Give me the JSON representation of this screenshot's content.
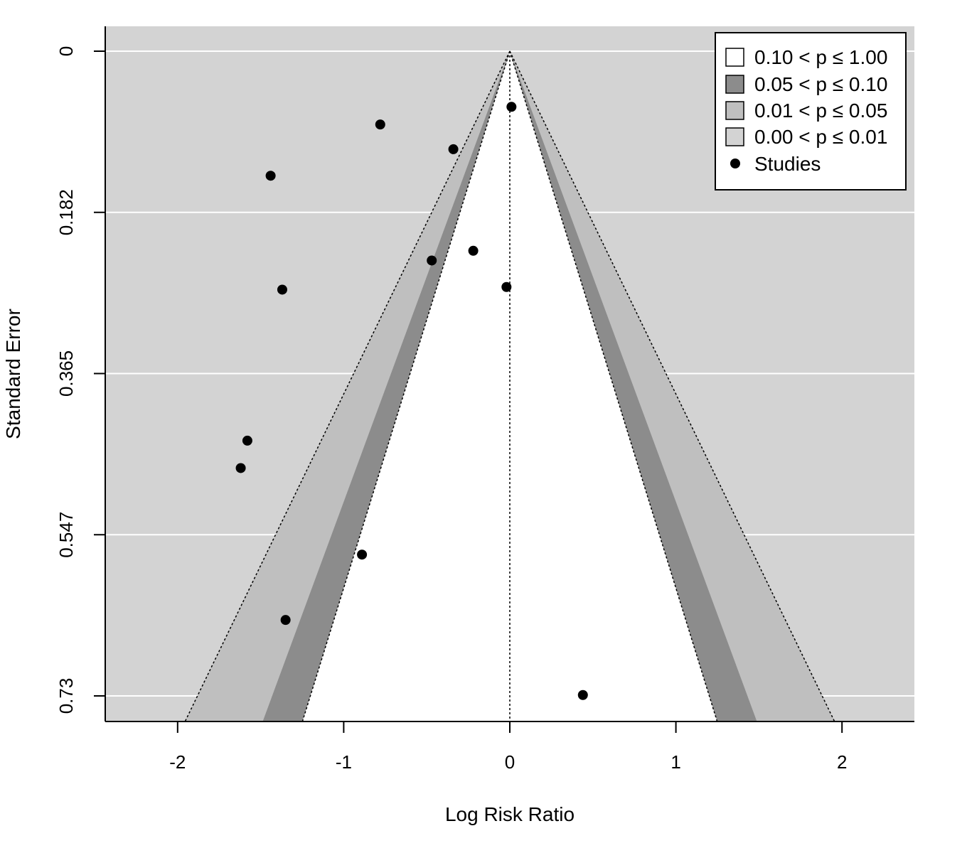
{
  "chart_data": {
    "type": "scatter",
    "subtype": "contour-enhanced funnel plot",
    "xlabel": "Log Risk Ratio",
    "ylabel": "Standard Error",
    "xlim": [
      -2.43,
      2.43
    ],
    "ylim": [
      0.73,
      0
    ],
    "x_ticks": [
      {
        "value": -2,
        "label": "-2"
      },
      {
        "value": -1,
        "label": "-1"
      },
      {
        "value": 0,
        "label": "0"
      },
      {
        "value": 1,
        "label": "1"
      },
      {
        "value": 2,
        "label": "2"
      }
    ],
    "y_ticks": [
      {
        "value": 0,
        "label": "0"
      },
      {
        "value": 0.1825,
        "label": "0.182"
      },
      {
        "value": 0.365,
        "label": "0.365"
      },
      {
        "value": 0.5475,
        "label": "0.547"
      },
      {
        "value": 0.73,
        "label": "0.73"
      }
    ],
    "reference_x": 0,
    "contour_levels": [
      {
        "label": "0.10 < p ≤ 1.00",
        "z": 1.645,
        "color": "#ffffff"
      },
      {
        "label": "0.05 < p ≤ 0.10",
        "z": 1.96,
        "color": "#8c8c8c"
      },
      {
        "label": "0.01 < p ≤ 0.05",
        "z": 2.576,
        "color": "#bfbfbf"
      },
      {
        "label": "0.00 < p ≤ 0.01",
        "color": "#d3d3d3"
      }
    ],
    "points_legend_label": "Studies",
    "studies": [
      {
        "x": 0.01,
        "y": 0.063
      },
      {
        "x": -0.78,
        "y": 0.083
      },
      {
        "x": -0.34,
        "y": 0.111
      },
      {
        "x": -1.44,
        "y": 0.141
      },
      {
        "x": -0.22,
        "y": 0.226
      },
      {
        "x": -0.47,
        "y": 0.237
      },
      {
        "x": -0.02,
        "y": 0.267
      },
      {
        "x": -1.37,
        "y": 0.27
      },
      {
        "x": -1.58,
        "y": 0.441
      },
      {
        "x": -1.62,
        "y": 0.472
      },
      {
        "x": -0.89,
        "y": 0.57
      },
      {
        "x": -1.35,
        "y": 0.644
      },
      {
        "x": 0.44,
        "y": 0.729
      }
    ]
  }
}
